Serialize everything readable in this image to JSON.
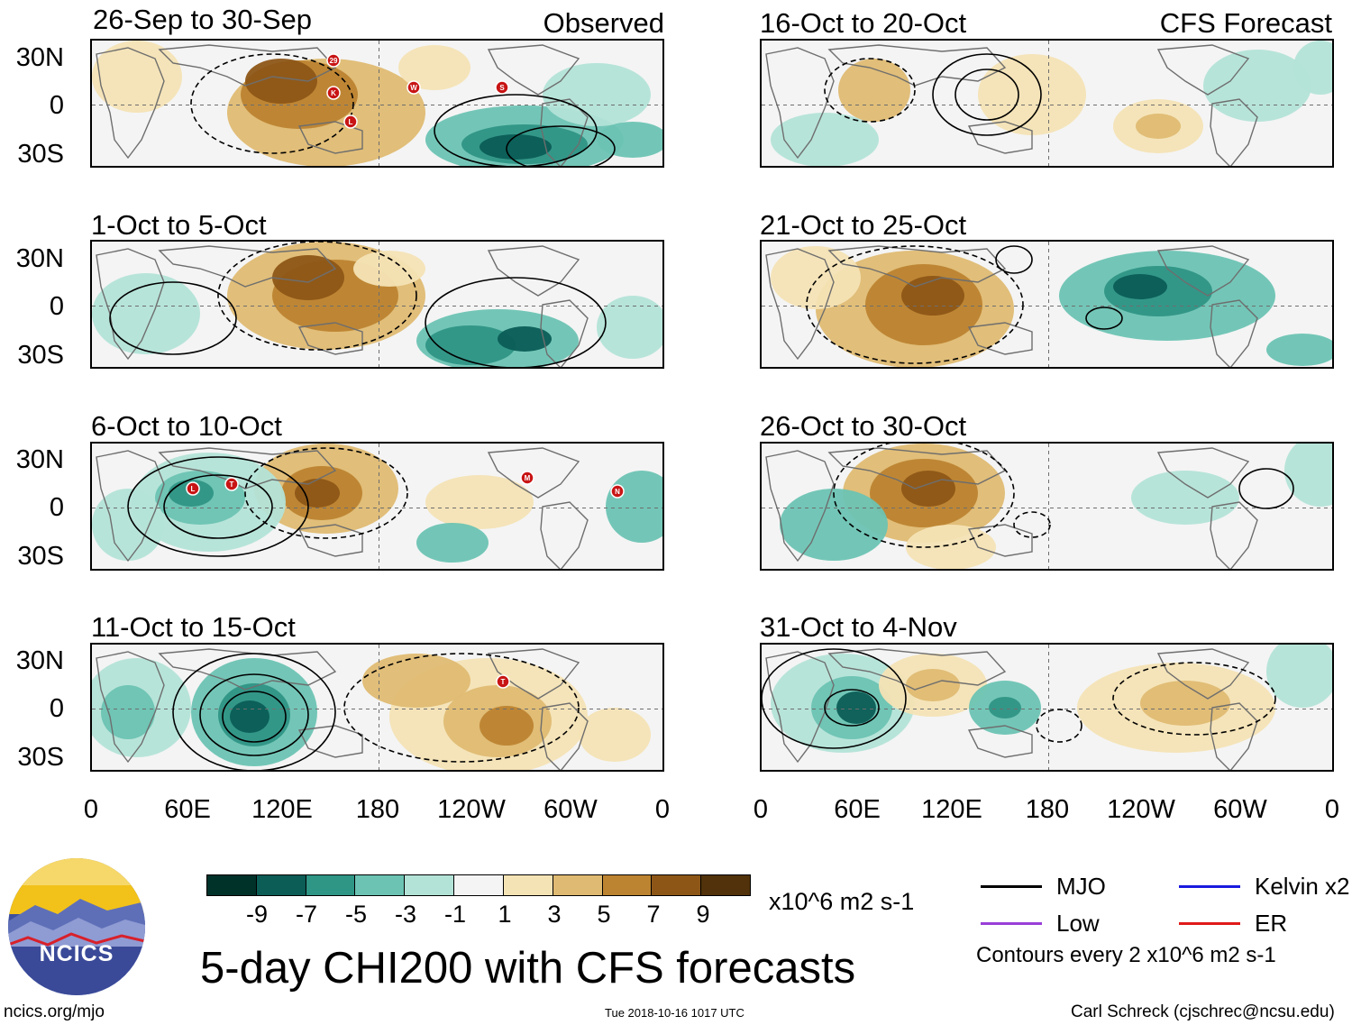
{
  "panels": [
    {
      "id": "p1",
      "period": "26-Sep to 30-Sep",
      "tag": "Observed"
    },
    {
      "id": "p2",
      "period": "1-Oct to 5-Oct",
      "tag": ""
    },
    {
      "id": "p3",
      "period": "6-Oct to 10-Oct",
      "tag": ""
    },
    {
      "id": "p4",
      "period": "11-Oct to 15-Oct",
      "tag": ""
    },
    {
      "id": "p5",
      "period": "16-Oct to 20-Oct",
      "tag": "CFS Forecast"
    },
    {
      "id": "p6",
      "period": "21-Oct to 25-Oct",
      "tag": ""
    },
    {
      "id": "p7",
      "period": "26-Oct to 30-Oct",
      "tag": ""
    },
    {
      "id": "p8",
      "period": "31-Oct to 4-Nov",
      "tag": ""
    }
  ],
  "axes": {
    "lat_labels": [
      "30N",
      "0",
      "30S"
    ],
    "lon_labels": [
      "0",
      "60E",
      "120E",
      "180",
      "120W",
      "60W",
      "0"
    ]
  },
  "colorbar": {
    "ticks": [
      "-9",
      "-7",
      "-5",
      "-3",
      "-1",
      "1",
      "3",
      "5",
      "7",
      "9"
    ],
    "colors": [
      "#01322a",
      "#0b5d56",
      "#2f9585",
      "#6cc3b3",
      "#b3e3d7",
      "#f4f4f4",
      "#f4e3b5",
      "#dfba72",
      "#bc8330",
      "#8d5617",
      "#51320a"
    ],
    "units": "x10^6 m2 s-1"
  },
  "storms": {
    "p1": [
      "29",
      "K",
      "L",
      "W",
      "S"
    ],
    "p3": [
      "L",
      "T",
      "M",
      "N"
    ],
    "p4": [
      "T"
    ]
  },
  "title": "5-day CHI200 with CFS forecasts",
  "legend": {
    "mjo": "MJO",
    "kelvin": "Kelvin x2",
    "low": "Low",
    "er": "ER",
    "contour_note": "Contours every 2 x10^6 m2 s-1",
    "colors": {
      "mjo": "#000000",
      "kelvin": "#1a1ae0",
      "low": "#9a3fd8",
      "er": "#e01a1a"
    }
  },
  "logo": {
    "text": "NCICS"
  },
  "footer": {
    "url": "ncics.org/mjo",
    "timestamp": "Tue 2018-10-16 1017 UTC",
    "author": "Carl Schreck (cjschrec@ncsu.edu)"
  }
}
